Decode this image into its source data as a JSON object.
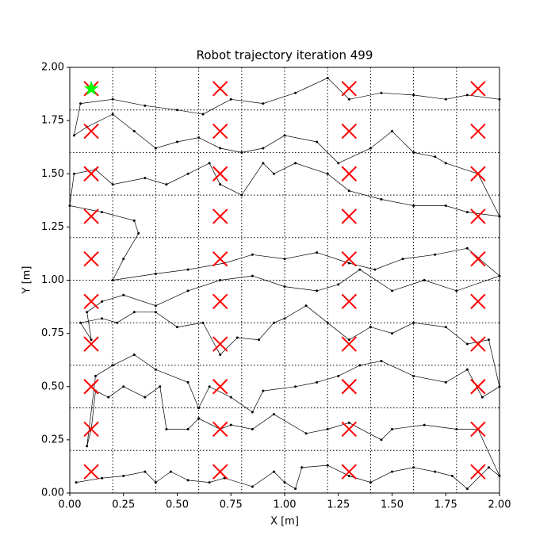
{
  "chart_data": {
    "type": "trajectory",
    "title": "Robot trajectory iteration 499",
    "x_label": "X [m]",
    "y_label": "Y [m]",
    "xlim": [
      0,
      2
    ],
    "ylim": [
      0,
      2
    ],
    "xticks": [
      {
        "value": 0,
        "label": "0.00"
      },
      {
        "value": 0.25,
        "label": "0.25"
      },
      {
        "value": 0.5,
        "label": "0.50"
      },
      {
        "value": 0.75,
        "label": "0.75"
      },
      {
        "value": 1,
        "label": "1.00"
      },
      {
        "value": 1.25,
        "label": "1.25"
      },
      {
        "value": 1.5,
        "label": "1.50"
      },
      {
        "value": 1.75,
        "label": "1.75"
      },
      {
        "value": 2,
        "label": "2.00"
      }
    ],
    "yticks": [
      {
        "value": 0,
        "label": "0.00"
      },
      {
        "value": 0.25,
        "label": "0.25"
      },
      {
        "value": 0.5,
        "label": "0.50"
      },
      {
        "value": 0.75,
        "label": "0.75"
      },
      {
        "value": 1,
        "label": "1.00"
      },
      {
        "value": 1.25,
        "label": "1.25"
      },
      {
        "value": 1.5,
        "label": "1.50"
      },
      {
        "value": 1.75,
        "label": "1.75"
      },
      {
        "value": 2,
        "label": "2.00"
      }
    ],
    "grid_x": [
      0.2,
      0.4,
      0.6,
      0.8,
      1.0,
      1.2,
      1.4,
      1.6,
      1.8
    ],
    "grid_y": [
      0.2,
      0.4,
      0.6,
      0.8,
      1.0,
      1.2,
      1.4,
      1.6,
      1.8
    ],
    "trajectory": {
      "color": "#000000",
      "x": [
        0.03,
        0.15,
        0.25,
        0.35,
        0.4,
        0.47,
        0.55,
        0.65,
        0.72,
        0.85,
        0.95,
        1.0,
        1.05,
        1.08,
        1.2,
        1.3,
        1.4,
        1.5,
        1.6,
        1.7,
        1.78,
        1.85,
        1.95,
        2.0,
        1.9,
        1.8,
        1.65,
        1.5,
        1.45,
        1.3,
        1.2,
        1.1,
        0.95,
        0.85,
        0.75,
        0.7,
        0.6,
        0.55,
        0.45,
        0.42,
        0.35,
        0.25,
        0.18,
        0.12,
        0.1,
        0.08,
        0.12,
        0.2,
        0.3,
        0.4,
        0.55,
        0.6,
        0.65,
        0.75,
        0.85,
        0.9,
        1.05,
        1.15,
        1.25,
        1.35,
        1.45,
        1.6,
        1.75,
        1.85,
        1.92,
        2.0,
        1.95,
        1.85,
        1.75,
        1.6,
        1.5,
        1.4,
        1.3,
        1.2,
        1.1,
        1.0,
        0.95,
        0.88,
        0.78,
        0.7,
        0.62,
        0.5,
        0.4,
        0.3,
        0.22,
        0.15,
        0.05,
        0.1,
        0.08,
        0.15,
        0.25,
        0.4,
        0.55,
        0.7,
        0.85,
        1.0,
        1.15,
        1.25,
        1.35,
        1.5,
        1.65,
        1.8,
        2.0,
        1.85,
        1.7,
        1.55,
        1.42,
        1.3,
        1.15,
        1.0,
        0.85,
        0.72,
        0.55,
        0.4,
        0.2,
        0.25,
        0.32,
        0.3,
        0.15,
        0.0,
        0.02,
        0.12,
        0.2,
        0.35,
        0.45,
        0.55,
        0.65,
        0.7,
        0.8,
        0.9,
        0.95,
        1.05,
        1.2,
        1.3,
        1.45,
        1.6,
        1.75,
        1.85,
        2.0,
        1.9,
        1.75,
        1.7,
        1.6,
        1.5,
        1.4,
        1.25,
        1.15,
        1.0,
        0.9,
        0.8,
        0.7,
        0.6,
        0.5,
        0.4,
        0.3,
        0.2,
        0.08,
        0.02,
        0.05,
        0.2,
        0.35,
        0.5,
        0.62,
        0.75,
        0.9,
        1.05,
        1.2,
        1.3,
        1.45,
        1.6,
        1.75,
        1.85,
        2.0
      ],
      "values": [
        0.05,
        0.07,
        0.08,
        0.1,
        0.05,
        0.1,
        0.06,
        0.05,
        0.07,
        0.03,
        0.1,
        0.05,
        0.02,
        0.12,
        0.13,
        0.08,
        0.05,
        0.1,
        0.12,
        0.1,
        0.08,
        0.02,
        0.12,
        0.08,
        0.3,
        0.3,
        0.32,
        0.3,
        0.25,
        0.33,
        0.3,
        0.28,
        0.37,
        0.3,
        0.32,
        0.3,
        0.35,
        0.3,
        0.3,
        0.5,
        0.45,
        0.5,
        0.45,
        0.48,
        0.3,
        0.22,
        0.55,
        0.6,
        0.65,
        0.58,
        0.52,
        0.4,
        0.5,
        0.45,
        0.38,
        0.48,
        0.5,
        0.52,
        0.55,
        0.6,
        0.62,
        0.55,
        0.52,
        0.58,
        0.45,
        0.5,
        0.72,
        0.7,
        0.78,
        0.8,
        0.75,
        0.78,
        0.72,
        0.8,
        0.88,
        0.82,
        0.8,
        0.72,
        0.73,
        0.65,
        0.8,
        0.78,
        0.85,
        0.85,
        0.8,
        0.82,
        0.8,
        0.72,
        0.85,
        0.9,
        0.93,
        0.88,
        0.95,
        1.0,
        1.02,
        0.97,
        0.95,
        0.98,
        1.05,
        0.95,
        1.0,
        0.95,
        1.02,
        1.15,
        1.12,
        1.1,
        1.05,
        1.08,
        1.13,
        1.1,
        1.12,
        1.08,
        1.05,
        1.03,
        1.0,
        1.1,
        1.22,
        1.28,
        1.32,
        1.35,
        1.5,
        1.52,
        1.45,
        1.48,
        1.45,
        1.5,
        1.55,
        1.45,
        1.4,
        1.55,
        1.5,
        1.55,
        1.5,
        1.42,
        1.38,
        1.35,
        1.35,
        1.32,
        1.3,
        1.5,
        1.55,
        1.58,
        1.6,
        1.7,
        1.62,
        1.55,
        1.65,
        1.68,
        1.62,
        1.6,
        1.62,
        1.67,
        1.65,
        1.62,
        1.7,
        1.78,
        1.72,
        1.68,
        1.83,
        1.85,
        1.82,
        1.8,
        1.78,
        1.85,
        1.83,
        1.88,
        1.95,
        1.85,
        1.88,
        1.87,
        1.85,
        1.87,
        1.85
      ]
    },
    "targets": {
      "color": "#ff0000",
      "x": [
        0.1,
        0.1,
        0.1,
        0.1,
        0.1,
        0.1,
        0.1,
        0.1,
        0.1,
        0.1,
        0.7,
        0.7,
        0.7,
        0.7,
        0.7,
        0.7,
        0.7,
        0.7,
        0.7,
        0.7,
        1.3,
        1.3,
        1.3,
        1.3,
        1.3,
        1.3,
        1.3,
        1.3,
        1.3,
        1.3,
        1.9,
        1.9,
        1.9,
        1.9,
        1.9,
        1.9,
        1.9,
        1.9,
        1.9,
        1.9
      ],
      "values": [
        0.1,
        0.3,
        0.5,
        0.7,
        0.9,
        1.1,
        1.3,
        1.5,
        1.7,
        1.9,
        0.1,
        0.3,
        0.5,
        0.7,
        0.9,
        1.1,
        1.3,
        1.5,
        1.7,
        1.9,
        0.1,
        0.3,
        0.5,
        0.7,
        0.9,
        1.1,
        1.3,
        1.5,
        1.7,
        1.9,
        0.1,
        0.3,
        0.5,
        0.7,
        0.9,
        1.1,
        1.3,
        1.5,
        1.7,
        1.9
      ]
    },
    "start": {
      "color": "#00ff00",
      "x": 0.1,
      "value": 1.9
    }
  }
}
